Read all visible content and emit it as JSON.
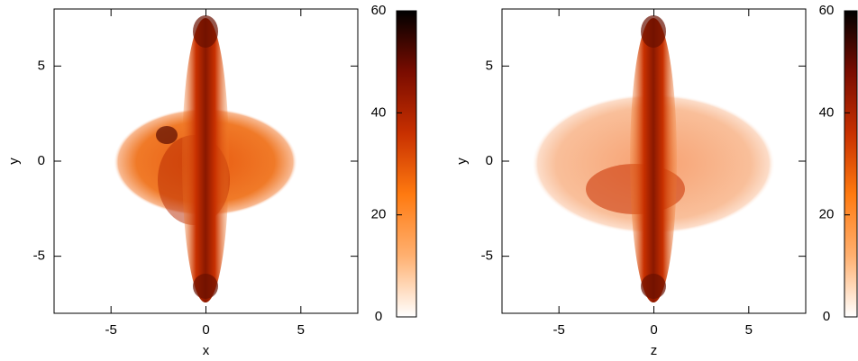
{
  "chart_data": [
    {
      "type": "heatmap",
      "xlabel": "x",
      "ylabel": "y",
      "xlim": [
        -8,
        8
      ],
      "ylim": [
        -8,
        8
      ],
      "xticks": [
        -5,
        0,
        5
      ],
      "yticks": [
        -5,
        0,
        5
      ],
      "clim": [
        0,
        60
      ],
      "cticks": [
        0,
        20,
        40,
        60
      ],
      "colormap": [
        "#ffffff",
        "#ffb070",
        "#ff7a10",
        "#c83000",
        "#7a0c00",
        "#000000"
      ]
    },
    {
      "type": "heatmap",
      "xlabel": "z",
      "ylabel": "y",
      "xlim": [
        -8,
        8
      ],
      "ylim": [
        -8,
        8
      ],
      "xticks": [
        -5,
        0,
        5
      ],
      "yticks": [
        -5,
        0,
        5
      ],
      "clim": [
        0,
        60
      ],
      "cticks": [
        0,
        20,
        40,
        60
      ],
      "colormap": [
        "#ffffff",
        "#ffb070",
        "#ff7a10",
        "#c83000",
        "#7a0c00",
        "#000000"
      ]
    }
  ]
}
